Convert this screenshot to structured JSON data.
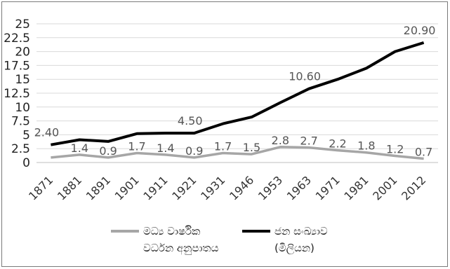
{
  "chart_data": {
    "type": "line",
    "categories": [
      "1871",
      "1881",
      "1891",
      "1901",
      "1911",
      "1921",
      "1931",
      "1946",
      "1953",
      "1963",
      "1971",
      "1981",
      "2001",
      "2012"
    ],
    "y_ticks": [
      "0",
      "2.5",
      "5",
      "7.5",
      "10",
      "12.5",
      "15",
      "17.5",
      "20",
      "22.5",
      "25"
    ],
    "ylim": [
      0,
      25
    ],
    "grid": true,
    "legend_position": "bottom",
    "series": [
      {
        "name": "මධ්‍ය වාර්ෂික\nවර්ධන අනුපාතය",
        "color": "#a6a6a6",
        "values": [
          0.9,
          1.4,
          0.9,
          1.7,
          1.4,
          0.9,
          1.7,
          1.5,
          2.8,
          2.7,
          2.2,
          1.8,
          1.2,
          0.7
        ],
        "labels": [
          "",
          "1.4",
          "0.9",
          "1.7",
          "1.4",
          "0.9",
          "1.7",
          "1.5",
          "2.8",
          "2.7",
          "2.2",
          "1.8",
          "1.2",
          "0.7"
        ]
      },
      {
        "name": "ජන සංඛ්‍යාව\n(මිලියන)",
        "color": "#000000",
        "values": [
          2.4,
          2.8,
          3.0,
          3.6,
          4.1,
          4.5,
          5.3,
          6.7,
          8.1,
          10.6,
          12.7,
          14.8,
          18.8,
          20.9
        ],
        "labels": [
          "2.40",
          "",
          "",
          "",
          "",
          "4.50",
          "",
          "",
          "",
          "10.60",
          "",
          "",
          "",
          "20.90"
        ],
        "plotted": [
          3.2,
          4.1,
          3.8,
          5.2,
          5.3,
          5.3,
          7.0,
          8.2,
          10.8,
          13.3,
          15.0,
          17.0,
          20.0,
          21.6
        ]
      }
    ]
  }
}
